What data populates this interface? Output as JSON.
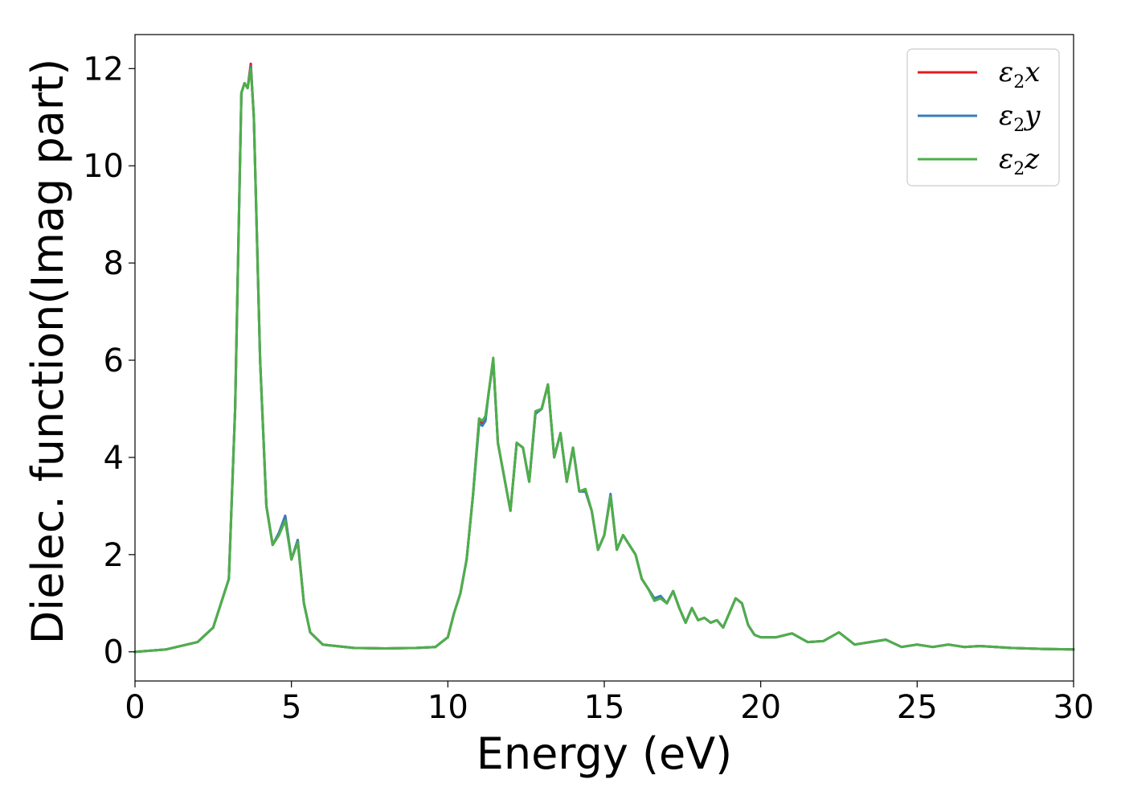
{
  "chart_data": {
    "type": "line",
    "xlabel": "Energy (eV)",
    "ylabel": "Dielec. function(Imag part)",
    "xlim": [
      0,
      30
    ],
    "ylim": [
      -0.6,
      12.7
    ],
    "xticks": [
      0,
      5,
      10,
      15,
      20,
      25,
      30
    ],
    "yticks": [
      0,
      2,
      4,
      6,
      8,
      10,
      12
    ],
    "grid": false,
    "legend_position": "top-right",
    "series": [
      {
        "name": "ε2x",
        "symbol": "ε",
        "subscript": "2",
        "axis": "x",
        "color": "#e41a1c",
        "x": [
          0,
          1,
          2,
          2.5,
          3.0,
          3.2,
          3.4,
          3.5,
          3.6,
          3.7,
          3.8,
          4.0,
          4.2,
          4.4,
          4.6,
          4.8,
          5.0,
          5.2,
          5.4,
          5.6,
          6.0,
          7.0,
          8.0,
          9.0,
          9.6,
          10.0,
          10.2,
          10.4,
          10.6,
          10.8,
          11.0,
          11.1,
          11.2,
          11.3,
          11.45,
          11.6,
          11.8,
          12.0,
          12.2,
          12.4,
          12.6,
          12.8,
          13.0,
          13.2,
          13.4,
          13.6,
          13.8,
          14.0,
          14.2,
          14.4,
          14.6,
          14.8,
          15.0,
          15.2,
          15.4,
          15.6,
          15.8,
          16.0,
          16.2,
          16.4,
          16.6,
          16.8,
          17.0,
          17.2,
          17.4,
          17.6,
          17.8,
          18.0,
          18.2,
          18.4,
          18.6,
          18.8,
          19.0,
          19.2,
          19.4,
          19.6,
          19.8,
          20.0,
          20.5,
          21.0,
          21.5,
          22.0,
          22.5,
          23.0,
          23.5,
          24.0,
          24.5,
          25.0,
          25.5,
          26.0,
          26.5,
          27.0,
          28.0,
          29.0,
          30.0
        ],
        "y": [
          0.0,
          0.05,
          0.2,
          0.5,
          1.5,
          5.0,
          11.5,
          11.7,
          11.6,
          12.1,
          11.0,
          6.0,
          3.0,
          2.2,
          2.4,
          2.8,
          1.9,
          2.3,
          1.0,
          0.4,
          0.15,
          0.08,
          0.07,
          0.08,
          0.1,
          0.3,
          0.8,
          1.2,
          1.9,
          3.2,
          4.8,
          4.7,
          4.8,
          5.3,
          6.0,
          4.3,
          3.6,
          2.9,
          4.3,
          4.2,
          3.5,
          4.9,
          5.0,
          5.5,
          4.0,
          4.5,
          3.5,
          4.2,
          3.3,
          3.3,
          2.9,
          2.1,
          2.4,
          3.2,
          2.1,
          2.4,
          2.2,
          2.0,
          1.5,
          1.3,
          1.1,
          1.1,
          1.0,
          1.25,
          0.9,
          0.6,
          0.9,
          0.65,
          0.7,
          0.6,
          0.65,
          0.5,
          0.8,
          1.1,
          1.0,
          0.55,
          0.35,
          0.3,
          0.3,
          0.38,
          0.2,
          0.22,
          0.4,
          0.15,
          0.2,
          0.25,
          0.1,
          0.15,
          0.1,
          0.15,
          0.1,
          0.12,
          0.08,
          0.06,
          0.05
        ]
      },
      {
        "name": "ε2y",
        "symbol": "ε",
        "subscript": "2",
        "axis": "y",
        "color": "#377eb8",
        "x": [
          0,
          1,
          2,
          2.5,
          3.0,
          3.2,
          3.4,
          3.5,
          3.6,
          3.7,
          3.8,
          4.0,
          4.2,
          4.4,
          4.6,
          4.8,
          5.0,
          5.2,
          5.4,
          5.6,
          6.0,
          7.0,
          8.0,
          9.0,
          9.6,
          10.0,
          10.2,
          10.4,
          10.6,
          10.8,
          11.0,
          11.1,
          11.2,
          11.3,
          11.45,
          11.6,
          11.8,
          12.0,
          12.2,
          12.4,
          12.6,
          12.8,
          13.0,
          13.2,
          13.4,
          13.6,
          13.8,
          14.0,
          14.2,
          14.4,
          14.6,
          14.8,
          15.0,
          15.2,
          15.4,
          15.6,
          15.8,
          16.0,
          16.2,
          16.4,
          16.6,
          16.8,
          17.0,
          17.2,
          17.4,
          17.6,
          17.8,
          18.0,
          18.2,
          18.4,
          18.6,
          18.8,
          19.0,
          19.2,
          19.4,
          19.6,
          19.8,
          20.0,
          20.5,
          21.0,
          21.5,
          22.0,
          22.5,
          23.0,
          23.5,
          24.0,
          24.5,
          25.0,
          25.5,
          26.0,
          26.5,
          27.0,
          28.0,
          29.0,
          30.0
        ],
        "y": [
          0.0,
          0.05,
          0.2,
          0.5,
          1.5,
          5.0,
          11.5,
          11.7,
          11.6,
          12.05,
          11.0,
          6.0,
          3.0,
          2.2,
          2.45,
          2.8,
          1.9,
          2.3,
          1.0,
          0.4,
          0.15,
          0.08,
          0.07,
          0.08,
          0.1,
          0.3,
          0.8,
          1.2,
          1.9,
          3.2,
          4.7,
          4.65,
          4.75,
          5.3,
          6.0,
          4.3,
          3.6,
          2.9,
          4.3,
          4.2,
          3.5,
          4.9,
          5.0,
          5.5,
          4.0,
          4.5,
          3.5,
          4.2,
          3.3,
          3.3,
          2.9,
          2.1,
          2.4,
          3.25,
          2.1,
          2.4,
          2.2,
          2.0,
          1.5,
          1.3,
          1.1,
          1.15,
          1.0,
          1.25,
          0.9,
          0.6,
          0.9,
          0.65,
          0.7,
          0.6,
          0.65,
          0.5,
          0.8,
          1.1,
          1.0,
          0.55,
          0.35,
          0.3,
          0.3,
          0.38,
          0.2,
          0.22,
          0.4,
          0.15,
          0.2,
          0.25,
          0.1,
          0.15,
          0.1,
          0.15,
          0.1,
          0.12,
          0.08,
          0.06,
          0.05
        ]
      },
      {
        "name": "ε2z",
        "symbol": "ε",
        "subscript": "2",
        "axis": "z",
        "color": "#4daf4a",
        "x": [
          0,
          1,
          2,
          2.5,
          3.0,
          3.2,
          3.4,
          3.5,
          3.6,
          3.7,
          3.8,
          4.0,
          4.2,
          4.4,
          4.6,
          4.8,
          5.0,
          5.2,
          5.4,
          5.6,
          6.0,
          7.0,
          8.0,
          9.0,
          9.6,
          10.0,
          10.2,
          10.4,
          10.6,
          10.8,
          11.0,
          11.1,
          11.2,
          11.3,
          11.45,
          11.6,
          11.8,
          12.0,
          12.2,
          12.4,
          12.6,
          12.8,
          13.0,
          13.2,
          13.4,
          13.6,
          13.8,
          14.0,
          14.2,
          14.4,
          14.6,
          14.8,
          15.0,
          15.2,
          15.4,
          15.6,
          15.8,
          16.0,
          16.2,
          16.4,
          16.6,
          16.8,
          17.0,
          17.2,
          17.4,
          17.6,
          17.8,
          18.0,
          18.2,
          18.4,
          18.6,
          18.8,
          19.0,
          19.2,
          19.4,
          19.6,
          19.8,
          20.0,
          20.5,
          21.0,
          21.5,
          22.0,
          22.5,
          23.0,
          23.5,
          24.0,
          24.5,
          25.0,
          25.5,
          26.0,
          26.5,
          27.0,
          28.0,
          29.0,
          30.0
        ],
        "y": [
          0.0,
          0.05,
          0.2,
          0.5,
          1.5,
          5.0,
          11.5,
          11.7,
          11.6,
          12.0,
          11.0,
          6.0,
          3.0,
          2.2,
          2.4,
          2.7,
          1.9,
          2.25,
          1.0,
          0.4,
          0.15,
          0.08,
          0.07,
          0.08,
          0.1,
          0.3,
          0.8,
          1.2,
          1.9,
          3.2,
          4.8,
          4.75,
          4.85,
          5.3,
          6.05,
          4.3,
          3.6,
          2.9,
          4.3,
          4.2,
          3.5,
          4.95,
          5.0,
          5.5,
          4.0,
          4.5,
          3.5,
          4.2,
          3.3,
          3.35,
          2.9,
          2.1,
          2.4,
          3.2,
          2.1,
          2.4,
          2.2,
          2.0,
          1.5,
          1.3,
          1.05,
          1.1,
          1.0,
          1.25,
          0.9,
          0.6,
          0.9,
          0.65,
          0.7,
          0.6,
          0.65,
          0.5,
          0.8,
          1.1,
          1.0,
          0.55,
          0.35,
          0.3,
          0.3,
          0.38,
          0.2,
          0.22,
          0.4,
          0.15,
          0.2,
          0.25,
          0.1,
          0.15,
          0.1,
          0.15,
          0.1,
          0.12,
          0.08,
          0.06,
          0.05
        ]
      }
    ]
  }
}
